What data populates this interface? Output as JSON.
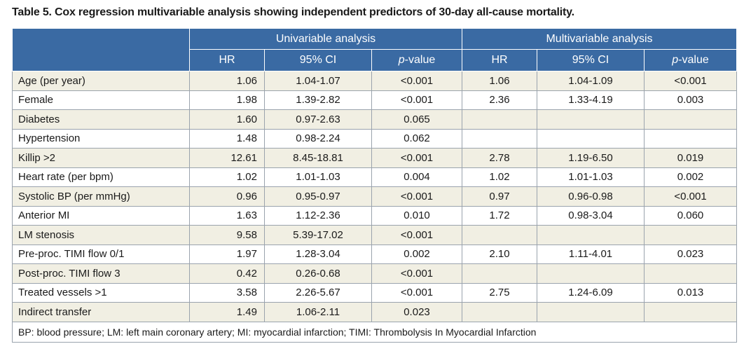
{
  "caption": "Table 5. Cox regression multivariable analysis showing independent predictors of 30-day all-cause mortality.",
  "headers": {
    "univariable": "Univariable analysis",
    "multivariable": "Multivariable analysis",
    "hr": "HR",
    "ci": "95% CI",
    "p_italic": "p",
    "p_rest": "-value"
  },
  "rows": [
    {
      "label": "Age (per year)",
      "u_hr": "1.06",
      "u_ci": "1.04-1.07",
      "u_p": "<0.001",
      "m_hr": "1.06",
      "m_ci": "1.04-1.09",
      "m_p": "<0.001"
    },
    {
      "label": "Female",
      "u_hr": "1.98",
      "u_ci": "1.39-2.82",
      "u_p": "<0.001",
      "m_hr": "2.36",
      "m_ci": "1.33-4.19",
      "m_p": "0.003"
    },
    {
      "label": "Diabetes",
      "u_hr": "1.60",
      "u_ci": "0.97-2.63",
      "u_p": "0.065",
      "m_hr": "",
      "m_ci": "",
      "m_p": ""
    },
    {
      "label": "Hypertension",
      "u_hr": "1.48",
      "u_ci": "0.98-2.24",
      "u_p": "0.062",
      "m_hr": "",
      "m_ci": "",
      "m_p": ""
    },
    {
      "label": "Killip >2",
      "u_hr": "12.61",
      "u_ci": "8.45-18.81",
      "u_p": "<0.001",
      "m_hr": "2.78",
      "m_ci": "1.19-6.50",
      "m_p": "0.019"
    },
    {
      "label": "Heart rate (per bpm)",
      "u_hr": "1.02",
      "u_ci": "1.01-1.03",
      "u_p": "0.004",
      "m_hr": "1.02",
      "m_ci": "1.01-1.03",
      "m_p": "0.002"
    },
    {
      "label": "Systolic BP (per mmHg)",
      "u_hr": "0.96",
      "u_ci": "0.95-0.97",
      "u_p": "<0.001",
      "m_hr": "0.97",
      "m_ci": "0.96-0.98",
      "m_p": "<0.001"
    },
    {
      "label": "Anterior MI",
      "u_hr": "1.63",
      "u_ci": "1.12-2.36",
      "u_p": "0.010",
      "m_hr": "1.72",
      "m_ci": "0.98-3.04",
      "m_p": "0.060"
    },
    {
      "label": "LM stenosis",
      "u_hr": "9.58",
      "u_ci": "5.39-17.02",
      "u_p": "<0.001",
      "m_hr": "",
      "m_ci": "",
      "m_p": ""
    },
    {
      "label": "Pre-proc. TIMI flow 0/1",
      "u_hr": "1.97",
      "u_ci": "1.28-3.04",
      "u_p": "0.002",
      "m_hr": "2.10",
      "m_ci": "1.11-4.01",
      "m_p": "0.023"
    },
    {
      "label": "Post-proc. TIMI flow 3",
      "u_hr": "0.42",
      "u_ci": "0.26-0.68",
      "u_p": "<0.001",
      "m_hr": "",
      "m_ci": "",
      "m_p": ""
    },
    {
      "label": "Treated vessels >1",
      "u_hr": "3.58",
      "u_ci": "2.26-5.67",
      "u_p": "<0.001",
      "m_hr": "2.75",
      "m_ci": "1.24-6.09",
      "m_p": "0.013"
    },
    {
      "label": "Indirect transfer",
      "u_hr": "1.49",
      "u_ci": "1.06-2.11",
      "u_p": "0.023",
      "m_hr": "",
      "m_ci": "",
      "m_p": ""
    }
  ],
  "footnote": "BP: blood pressure; LM: left main coronary artery; MI: myocardial infarction; TIMI: Thrombolysis In Myocardial Infarction",
  "colors": {
    "header_bg": "#3a6aa3",
    "odd_row_bg": "#f1efe3",
    "even_row_bg": "#ffffff"
  }
}
